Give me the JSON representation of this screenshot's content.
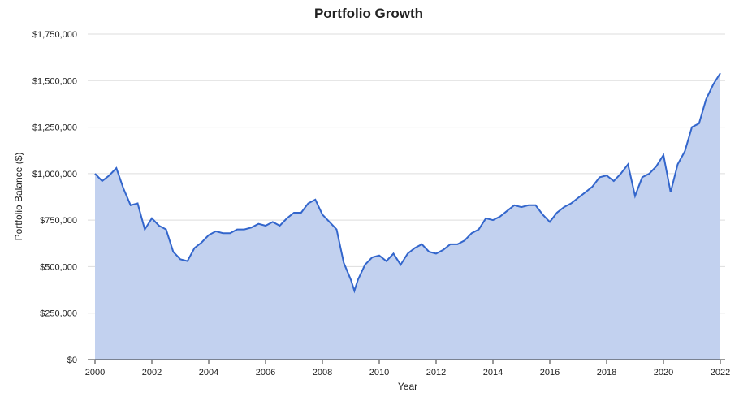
{
  "chart_data": {
    "type": "area",
    "title": "Portfolio Growth",
    "xlabel": "Year",
    "ylabel": "Portfolio Balance ($)",
    "xlim": [
      2000,
      2022
    ],
    "ylim": [
      0,
      1750000
    ],
    "grid": true,
    "legend": "none",
    "colors": {
      "line": "#3366cc",
      "fill": "#c2d1ef",
      "grid": "#dddddd"
    },
    "x_ticks": [
      "2000",
      "2002",
      "2004",
      "2006",
      "2008",
      "2010",
      "2012",
      "2014",
      "2016",
      "2018",
      "2020",
      "2022"
    ],
    "y_ticks": [
      "$0",
      "$250,000",
      "$500,000",
      "$750,000",
      "$1,000,000",
      "$1,250,000",
      "$1,500,000",
      "$1,750,000"
    ],
    "x": [
      2000,
      2000.25,
      2000.5,
      2000.75,
      2001,
      2001.25,
      2001.5,
      2001.75,
      2002,
      2002.25,
      2002.5,
      2002.75,
      2003,
      2003.25,
      2003.5,
      2003.75,
      2004,
      2004.25,
      2004.5,
      2004.75,
      2005,
      2005.25,
      2005.5,
      2005.75,
      2006,
      2006.25,
      2006.5,
      2006.75,
      2007,
      2007.25,
      2007.5,
      2007.75,
      2008,
      2008.25,
      2008.5,
      2008.75,
      2009,
      2009.125,
      2009.25,
      2009.5,
      2009.75,
      2010,
      2010.25,
      2010.5,
      2010.75,
      2011,
      2011.25,
      2011.5,
      2011.75,
      2012,
      2012.25,
      2012.5,
      2012.75,
      2013,
      2013.25,
      2013.5,
      2013.75,
      2014,
      2014.25,
      2014.5,
      2014.75,
      2015,
      2015.25,
      2015.5,
      2015.75,
      2016,
      2016.25,
      2016.5,
      2016.75,
      2017,
      2017.25,
      2017.5,
      2017.75,
      2018,
      2018.25,
      2018.5,
      2018.75,
      2019,
      2019.25,
      2019.5,
      2019.75,
      2020,
      2020.25,
      2020.5,
      2020.75,
      2021,
      2021.25,
      2021.5,
      2021.75,
      2022
    ],
    "values": [
      1000000,
      960000,
      990000,
      1030000,
      920000,
      830000,
      840000,
      700000,
      760000,
      720000,
      700000,
      580000,
      540000,
      530000,
      600000,
      630000,
      670000,
      690000,
      680000,
      680000,
      700000,
      700000,
      710000,
      730000,
      720000,
      740000,
      720000,
      760000,
      790000,
      790000,
      840000,
      860000,
      780000,
      740000,
      700000,
      520000,
      430000,
      370000,
      430000,
      510000,
      550000,
      560000,
      530000,
      570000,
      510000,
      570000,
      600000,
      620000,
      580000,
      570000,
      590000,
      620000,
      620000,
      640000,
      680000,
      700000,
      760000,
      750000,
      770000,
      800000,
      830000,
      820000,
      830000,
      830000,
      780000,
      740000,
      790000,
      820000,
      840000,
      870000,
      900000,
      930000,
      980000,
      990000,
      960000,
      1000000,
      1050000,
      880000,
      980000,
      1000000,
      1040000,
      1100000,
      900000,
      1050000,
      1120000,
      1250000,
      1270000,
      1400000,
      1480000,
      1540000
    ]
  }
}
